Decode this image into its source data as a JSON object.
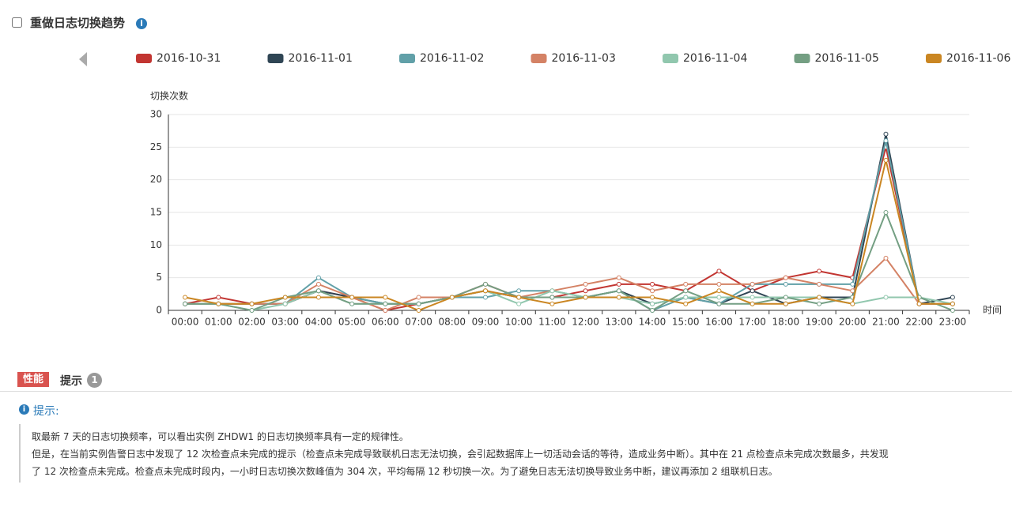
{
  "header": {
    "title": "重做日志切换趋势"
  },
  "chart_data": {
    "type": "line",
    "y_label": "切换次数",
    "x_label": "时间",
    "categories": [
      "00:00",
      "01:00",
      "02:00",
      "03:00",
      "04:00",
      "05:00",
      "06:00",
      "07:00",
      "08:00",
      "09:00",
      "10:00",
      "11:00",
      "12:00",
      "13:00",
      "14:00",
      "15:00",
      "16:00",
      "17:00",
      "18:00",
      "19:00",
      "20:00",
      "21:00",
      "22:00",
      "23:00"
    ],
    "ylim": [
      0,
      30
    ],
    "yticks": [
      0,
      5,
      10,
      15,
      20,
      25,
      30
    ],
    "grid": true,
    "series": [
      {
        "name": "2016-10-31",
        "color": "#c23531",
        "values": [
          1,
          2,
          1,
          1,
          3,
          2,
          0,
          1,
          2,
          4,
          2,
          2,
          3,
          4,
          4,
          3,
          6,
          3,
          5,
          6,
          5,
          25,
          1,
          1
        ]
      },
      {
        "name": "2016-11-01",
        "color": "#2f4554",
        "values": [
          1,
          1,
          1,
          1,
          3,
          2,
          1,
          1,
          2,
          3,
          2,
          2,
          2,
          3,
          1,
          2,
          1,
          3,
          1,
          2,
          2,
          27,
          1,
          2
        ]
      },
      {
        "name": "2016-11-02",
        "color": "#61a0a8",
        "values": [
          1,
          1,
          1,
          1,
          5,
          2,
          1,
          1,
          2,
          2,
          3,
          3,
          2,
          3,
          0,
          2,
          1,
          4,
          4,
          4,
          4,
          26,
          1,
          1
        ]
      },
      {
        "name": "2016-11-03",
        "color": "#d48265",
        "values": [
          1,
          1,
          1,
          1,
          4,
          2,
          0,
          2,
          2,
          3,
          2,
          3,
          4,
          5,
          3,
          4,
          4,
          4,
          5,
          4,
          3,
          8,
          1,
          1
        ]
      },
      {
        "name": "2016-11-04",
        "color": "#91c7ae",
        "values": [
          1,
          1,
          0,
          1,
          3,
          1,
          1,
          1,
          2,
          3,
          1,
          3,
          2,
          2,
          1,
          2,
          2,
          2,
          2,
          2,
          1,
          2,
          2,
          1
        ]
      },
      {
        "name": "2016-11-05",
        "color": "#749f83",
        "values": [
          1,
          1,
          0,
          2,
          3,
          1,
          1,
          1,
          2,
          4,
          2,
          2,
          2,
          3,
          0,
          3,
          1,
          1,
          2,
          1,
          2,
          15,
          2,
          0
        ]
      },
      {
        "name": "2016-11-06",
        "color": "#ca8622",
        "values": [
          2,
          1,
          1,
          2,
          2,
          2,
          2,
          0,
          2,
          3,
          2,
          1,
          2,
          2,
          2,
          1,
          3,
          1,
          1,
          2,
          1,
          23,
          1,
          1
        ]
      }
    ]
  },
  "tabs": {
    "active": "性能",
    "second": "提示",
    "badge": "1"
  },
  "tip": {
    "title": "提示:",
    "lines": [
      "取最新 7 天的日志切换频率，可以看出实例 ZHDW1 的日志切换频率具有一定的规律性。",
      "但是，在当前实例告警日志中发现了 12 次检查点未完成的提示（检查点未完成导致联机日志无法切换，会引起数据库上一切活动会话的等待，造成业务中断）。其中在 21 点检查点未完成次数最多，共发现",
      "了 12 次检查点未完成。检查点未完成时段内，一小时日志切换次数峰值为 304 次，平均每隔 12 秒切换一次。为了避免日志无法切换导致业务中断，建议再添加 2 组联机日志。"
    ]
  }
}
